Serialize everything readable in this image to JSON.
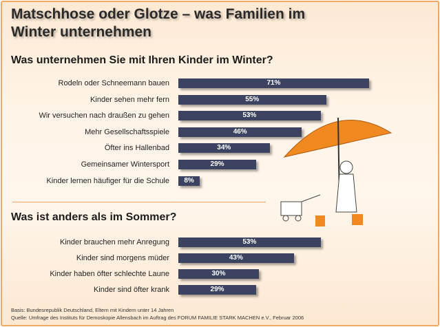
{
  "title_line1": "Matschhose oder Glotze – was Familien im",
  "title_line2": "Winter unternehmen",
  "chart_data": [
    {
      "type": "bar",
      "orientation": "horizontal",
      "title": "Was unternehmen Sie mit Ihren Kinder im Winter?",
      "categories": [
        "Rodeln oder Schneemann bauen",
        "Kinder sehen mehr fern",
        "Wir versuchen nach draußen zu gehen",
        "Mehr Gesellschaftsspiele",
        "Öfter ins Hallenbad",
        "Gemeinsamer Wintersport",
        "Kinder lernen häufiger für die Schule"
      ],
      "values": [
        71,
        55,
        53,
        46,
        34,
        29,
        8
      ],
      "labels": [
        "71%",
        "55%",
        "53%",
        "46%",
        "34%",
        "29%",
        "8%"
      ],
      "unit": "%"
    },
    {
      "type": "bar",
      "orientation": "horizontal",
      "title": "Was ist anders als im Sommer?",
      "categories": [
        "Kinder brauchen mehr Anregung",
        "Kinder sind morgens müder",
        "Kinder haben öfter schlechte Laune",
        "Kinder sind öfter krank"
      ],
      "values": [
        53,
        43,
        30,
        29
      ],
      "labels": [
        "53%",
        "43%",
        "30%",
        "29%"
      ],
      "unit": "%"
    }
  ],
  "colors": {
    "bar": "#3c4360",
    "border": "#f0a860",
    "accent": "#f08a20"
  },
  "footer": {
    "basis": "Basis: Bundesrepublik Deutschland, Eltern mit Kindern unter 14 Jahren",
    "source": "Quelle: Umfrage des Instituts für Demoskopie Allensbach im Auftrag des FORUM FAMILIE STARK MACHEN e.V., Februar 2006"
  }
}
